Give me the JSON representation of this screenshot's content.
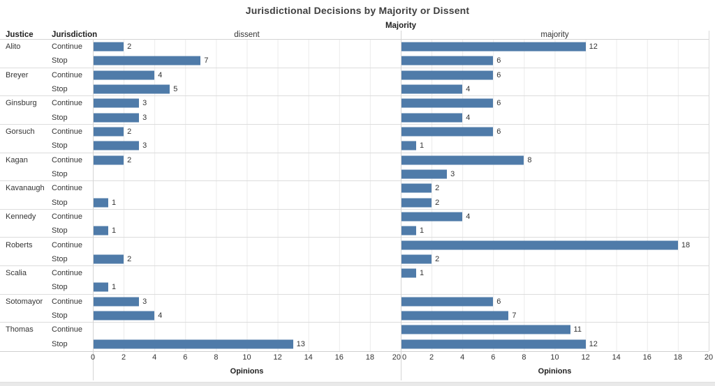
{
  "title": "Jurisdictional Decisions by Majority or Dissent",
  "colors": {
    "bar": "#4f7ba9",
    "gridline": "#eaeaea",
    "separator": "#dcdcdc",
    "bottom_strip": "#e9e9e9"
  },
  "chart_data": {
    "type": "bar",
    "orientation": "horizontal",
    "title": "Jurisdictional Decisions by Majority or Dissent",
    "column_field_label": "Majority",
    "column_values": [
      "dissent",
      "majority"
    ],
    "row_fields": {
      "justice": "Justice",
      "jurisdiction": "Jurisdiction"
    },
    "xlabel": "Opinions",
    "xlim": [
      0,
      20
    ],
    "x_ticks": [
      0,
      2,
      4,
      6,
      8,
      10,
      12,
      14,
      16,
      18,
      20
    ],
    "grid": true,
    "bar_color": "#4f7ba9",
    "rows": [
      {
        "justice": "Alito",
        "jurisdiction": "Continue",
        "dissent": 2,
        "majority": 12
      },
      {
        "justice": "Alito",
        "jurisdiction": "Stop",
        "dissent": 7,
        "majority": 6
      },
      {
        "justice": "Breyer",
        "jurisdiction": "Continue",
        "dissent": 4,
        "majority": 6
      },
      {
        "justice": "Breyer",
        "jurisdiction": "Stop",
        "dissent": 5,
        "majority": 4
      },
      {
        "justice": "Ginsburg",
        "jurisdiction": "Continue",
        "dissent": 3,
        "majority": 6
      },
      {
        "justice": "Ginsburg",
        "jurisdiction": "Stop",
        "dissent": 3,
        "majority": 4
      },
      {
        "justice": "Gorsuch",
        "jurisdiction": "Continue",
        "dissent": 2,
        "majority": 6
      },
      {
        "justice": "Gorsuch",
        "jurisdiction": "Stop",
        "dissent": 3,
        "majority": 1
      },
      {
        "justice": "Kagan",
        "jurisdiction": "Continue",
        "dissent": 2,
        "majority": 8
      },
      {
        "justice": "Kagan",
        "jurisdiction": "Stop",
        "dissent": null,
        "majority": 3
      },
      {
        "justice": "Kavanaugh",
        "jurisdiction": "Continue",
        "dissent": null,
        "majority": 2
      },
      {
        "justice": "Kavanaugh",
        "jurisdiction": "Stop",
        "dissent": 1,
        "majority": 2
      },
      {
        "justice": "Kennedy",
        "jurisdiction": "Continue",
        "dissent": null,
        "majority": 4
      },
      {
        "justice": "Kennedy",
        "jurisdiction": "Stop",
        "dissent": 1,
        "majority": 1
      },
      {
        "justice": "Roberts",
        "jurisdiction": "Continue",
        "dissent": null,
        "majority": 18
      },
      {
        "justice": "Roberts",
        "jurisdiction": "Stop",
        "dissent": 2,
        "majority": 2
      },
      {
        "justice": "Scalia",
        "jurisdiction": "Continue",
        "dissent": null,
        "majority": 1
      },
      {
        "justice": "Scalia",
        "jurisdiction": "Stop",
        "dissent": 1,
        "majority": null
      },
      {
        "justice": "Sotomayor",
        "jurisdiction": "Continue",
        "dissent": 3,
        "majority": 6
      },
      {
        "justice": "Sotomayor",
        "jurisdiction": "Stop",
        "dissent": 4,
        "majority": 7
      },
      {
        "justice": "Thomas",
        "jurisdiction": "Continue",
        "dissent": null,
        "majority": 11
      },
      {
        "justice": "Thomas",
        "jurisdiction": "Stop",
        "dissent": 13,
        "majority": 12
      }
    ]
  }
}
